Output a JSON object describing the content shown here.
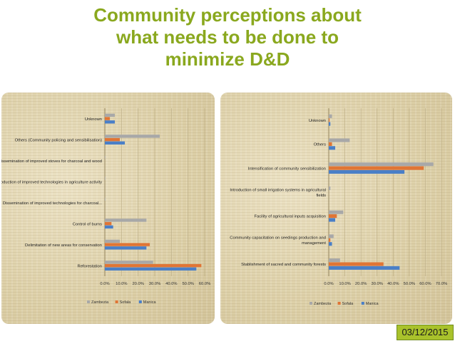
{
  "slide": {
    "title_lines": [
      "Community perceptions about",
      "what needs to be done to",
      "minimize D&D"
    ],
    "date": "03/12/2015"
  },
  "colors": {
    "title": "#8aa81e",
    "Zambezia": "#a8a8a8",
    "Sofala": "#e07535",
    "Manica": "#4a7fc7",
    "date_badge": "#a9c22b"
  },
  "chart_data": [
    {
      "type": "bar",
      "orientation": "horizontal",
      "title": "",
      "xlabel": "",
      "ylabel": "",
      "categories": [
        "Unknown",
        "Others (Community policing and sensibilisation)",
        "Dissemination of improved stoves for charcoal and wood",
        "Introduction of improved technologies in agriculture activity",
        "Dissemination of improved technologies for charcoal...",
        "Control of burns",
        "Delimitation of new areas for conservation",
        "Reforestation"
      ],
      "series": [
        {
          "name": "Zambezia",
          "values": [
            6,
            33,
            0.3,
            0.3,
            0.3,
            25,
            9,
            29
          ]
        },
        {
          "name": "Sofala",
          "values": [
            3,
            9,
            0,
            0,
            0,
            4,
            27,
            58
          ]
        },
        {
          "name": "Manica",
          "values": [
            6,
            12,
            0,
            0,
            0,
            5,
            25,
            55
          ]
        }
      ],
      "xlim": [
        0,
        60
      ],
      "xticks": [
        "0.0%",
        "10.0%",
        "20.0%",
        "30.0%",
        "40.0%",
        "50.0%",
        "60.0%"
      ],
      "legend": [
        "Zambezia",
        "Sofala",
        "Manica"
      ],
      "legend_position": "bottom"
    },
    {
      "type": "bar",
      "orientation": "horizontal",
      "title": "",
      "xlabel": "",
      "ylabel": "",
      "categories": [
        "Unknown",
        "Others",
        "Intensification of community  sensibilization",
        "Introduction of small irrigation systems in agricultural fields",
        "Facility of agricultural inputs acquisition",
        "Community capacitation on seedings production and management",
        "Stablishment of sacred and community forests"
      ],
      "series": [
        {
          "name": "Zambezia",
          "values": [
            2,
            13,
            65,
            1,
            9,
            3,
            7
          ]
        },
        {
          "name": "Sofala",
          "values": [
            0.5,
            2,
            59,
            0,
            5,
            1,
            34
          ]
        },
        {
          "name": "Manica",
          "values": [
            1,
            4,
            47,
            0,
            4,
            2,
            44
          ]
        }
      ],
      "xlim": [
        0,
        70
      ],
      "xticks": [
        "0.0%",
        "10.0%",
        "20.0%",
        "30.0%",
        "40.0%",
        "50.0%",
        "60.0%",
        "70.0%"
      ],
      "legend": [
        "Zambezia",
        "Sofala",
        "Manica"
      ],
      "legend_position": "bottom"
    }
  ]
}
